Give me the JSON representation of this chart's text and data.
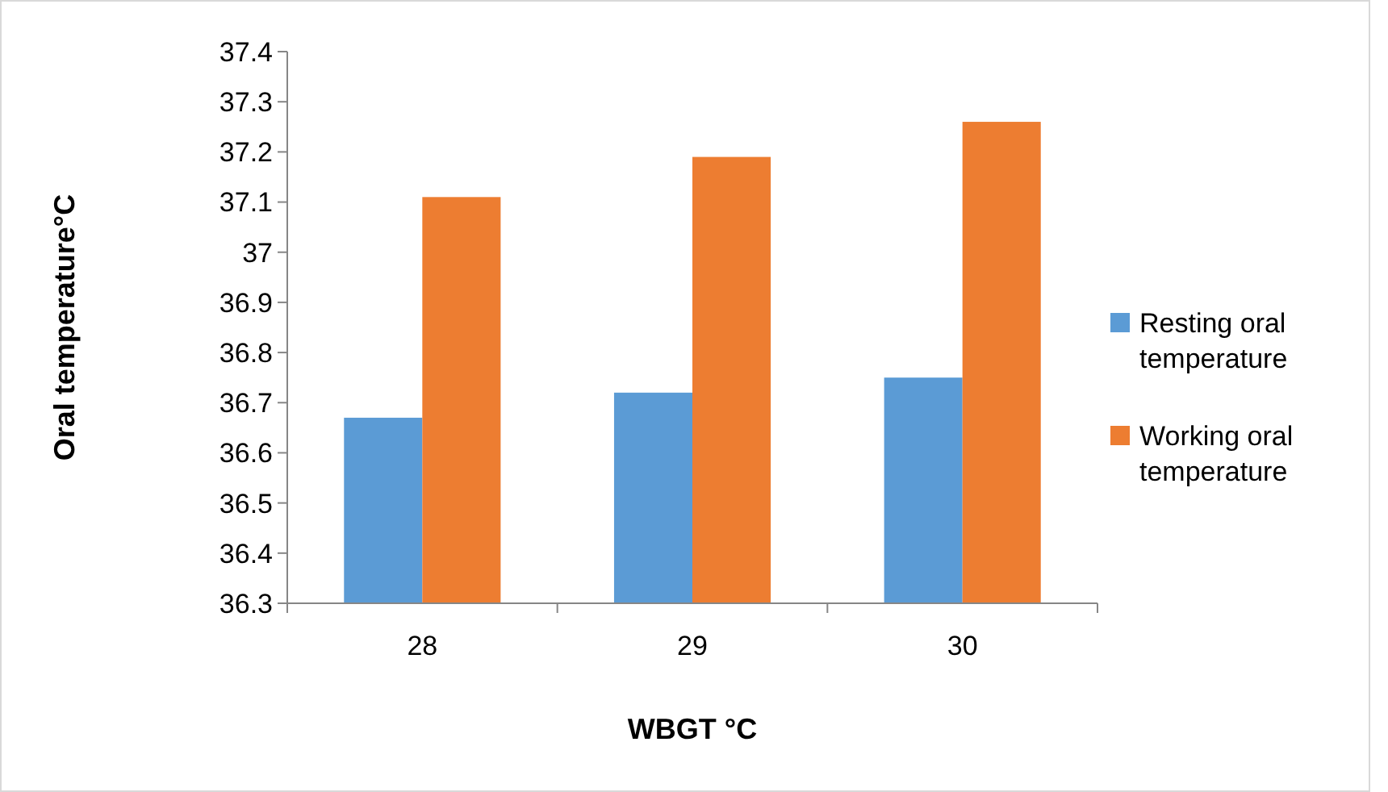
{
  "chart_data": {
    "type": "bar",
    "xlabel": "WBGT °C",
    "ylabel": "Oral temperature°C",
    "categories": [
      "28",
      "29",
      "30"
    ],
    "series": [
      {
        "name": "Resting oral temperature",
        "color": "#5b9bd5",
        "values": [
          36.67,
          36.72,
          36.75
        ]
      },
      {
        "name": "Working oral temperature",
        "color": "#ed7d31",
        "values": [
          37.11,
          37.19,
          37.26
        ]
      }
    ],
    "ylim": [
      36.3,
      37.4
    ],
    "yticks": [
      36.3,
      36.4,
      36.5,
      36.6,
      36.7,
      36.8,
      36.9,
      37,
      37.1,
      37.2,
      37.3,
      37.4
    ],
    "grid": false,
    "legend": "right"
  }
}
